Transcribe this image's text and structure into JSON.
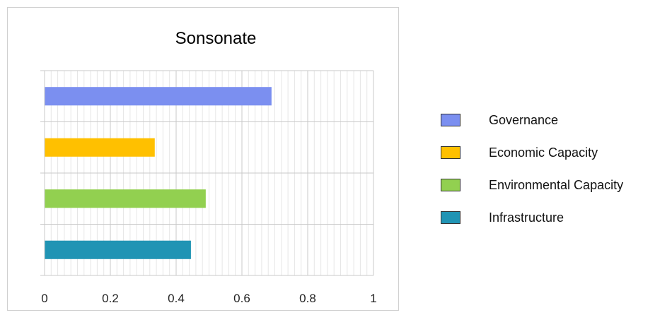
{
  "chart_data": {
    "type": "bar",
    "orientation": "horizontal",
    "title": "Sonsonate",
    "xlim": [
      0,
      1
    ],
    "x_ticks": [
      "0",
      "0.2",
      "0.4",
      "0.6",
      "0.8",
      "1"
    ],
    "grid": true,
    "legend_position": "right",
    "series": [
      {
        "name": "Governance",
        "value": 0.69,
        "color": "#7b8ff0"
      },
      {
        "name": "Economic Capacity",
        "value": 0.335,
        "color": "#ffc000"
      },
      {
        "name": "Environmental Capacity",
        "value": 0.49,
        "color": "#92d050"
      },
      {
        "name": "Infrastructure",
        "value": 0.445,
        "color": "#2094b4"
      }
    ]
  }
}
